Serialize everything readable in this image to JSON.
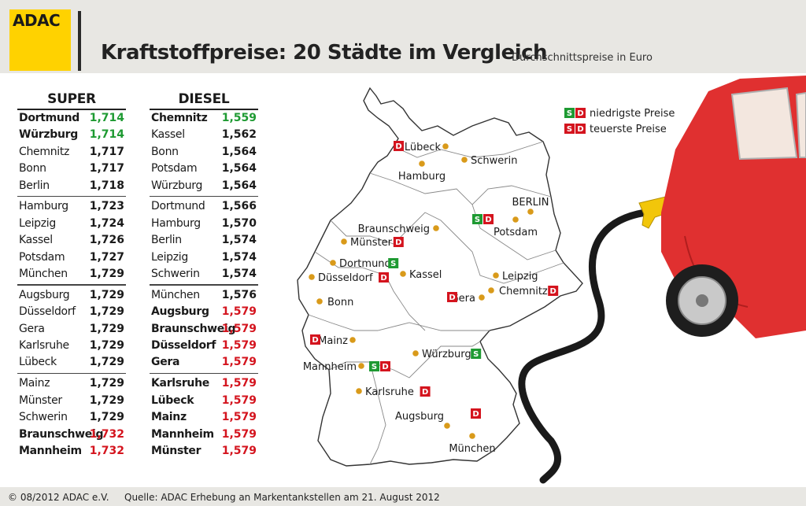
{
  "header": {
    "logo": "ADAC",
    "title": "Kraftstoffpreise: 20 Städte im Vergleich",
    "subtitle": "Durchschnittspreise in Euro"
  },
  "footer": {
    "copyright": "© 08/2012 ADAC e.V.",
    "source": "Quelle: ADAC Erhebung an Markentankstellen am 21. August 2012"
  },
  "colors": {
    "low": "#1e9a32",
    "high": "#d4141e",
    "accent": "#ffd200",
    "car": "#e03030",
    "dot": "#d99a1a"
  },
  "legend": {
    "low_label": "niedrigste Preise",
    "high_label": "teuerste Preise",
    "super_letter": "S",
    "diesel_letter": "D"
  },
  "chart_data": {
    "type": "table",
    "columns": [
      {
        "name": "SUPER",
        "rows": [
          {
            "city": "Dortmund",
            "price": "1,714",
            "flag": "low"
          },
          {
            "city": "Würzburg",
            "price": "1,714",
            "flag": "low"
          },
          {
            "city": "Chemnitz",
            "price": "1,717",
            "flag": ""
          },
          {
            "city": "Bonn",
            "price": "1,717",
            "flag": ""
          },
          {
            "city": "Berlin",
            "price": "1,718",
            "flag": ""
          },
          {
            "city": "Hamburg",
            "price": "1,723",
            "flag": ""
          },
          {
            "city": "Leipzig",
            "price": "1,724",
            "flag": ""
          },
          {
            "city": "Kassel",
            "price": "1,726",
            "flag": ""
          },
          {
            "city": "Potsdam",
            "price": "1,727",
            "flag": ""
          },
          {
            "city": "München",
            "price": "1,729",
            "flag": ""
          },
          {
            "city": "Augsburg",
            "price": "1,729",
            "flag": ""
          },
          {
            "city": "Düsseldorf",
            "price": "1,729",
            "flag": ""
          },
          {
            "city": "Gera",
            "price": "1,729",
            "flag": ""
          },
          {
            "city": "Karlsruhe",
            "price": "1,729",
            "flag": ""
          },
          {
            "city": "Lübeck",
            "price": "1,729",
            "flag": ""
          },
          {
            "city": "Mainz",
            "price": "1,729",
            "flag": ""
          },
          {
            "city": "Münster",
            "price": "1,729",
            "flag": ""
          },
          {
            "city": "Schwerin",
            "price": "1,729",
            "flag": ""
          },
          {
            "city": "Braunschweig",
            "price": "1,732",
            "flag": "high"
          },
          {
            "city": "Mannheim",
            "price": "1,732",
            "flag": "high"
          }
        ]
      },
      {
        "name": "DIESEL",
        "rows": [
          {
            "city": "Chemnitz",
            "price": "1,559",
            "flag": "low"
          },
          {
            "city": "Kassel",
            "price": "1,562",
            "flag": ""
          },
          {
            "city": "Bonn",
            "price": "1,564",
            "flag": ""
          },
          {
            "city": "Potsdam",
            "price": "1,564",
            "flag": ""
          },
          {
            "city": "Würzburg",
            "price": "1,564",
            "flag": ""
          },
          {
            "city": "Dortmund",
            "price": "1,566",
            "flag": ""
          },
          {
            "city": "Hamburg",
            "price": "1,570",
            "flag": ""
          },
          {
            "city": "Berlin",
            "price": "1,574",
            "flag": ""
          },
          {
            "city": "Leipzig",
            "price": "1,574",
            "flag": ""
          },
          {
            "city": "Schwerin",
            "price": "1,574",
            "flag": ""
          },
          {
            "city": "München",
            "price": "1,576",
            "flag": ""
          },
          {
            "city": "Augsburg",
            "price": "1,579",
            "flag": "high"
          },
          {
            "city": "Braunschweig",
            "price": "1,579",
            "flag": "high"
          },
          {
            "city": "Düsseldorf",
            "price": "1,579",
            "flag": "high"
          },
          {
            "city": "Gera",
            "price": "1,579",
            "flag": "high"
          },
          {
            "city": "Karlsruhe",
            "price": "1,579",
            "flag": "high"
          },
          {
            "city": "Lübeck",
            "price": "1,579",
            "flag": "high"
          },
          {
            "city": "Mainz",
            "price": "1,579",
            "flag": "high"
          },
          {
            "city": "Mannheim",
            "price": "1,579",
            "flag": "high"
          },
          {
            "city": "Münster",
            "price": "1,579",
            "flag": "high"
          }
        ]
      }
    ],
    "map_cities": [
      {
        "name": "Lübeck",
        "badges": [
          "D"
        ]
      },
      {
        "name": "Schwerin",
        "badges": []
      },
      {
        "name": "Hamburg",
        "badges": []
      },
      {
        "name": "BERLIN",
        "badges": []
      },
      {
        "name": "Potsdam",
        "badges": []
      },
      {
        "name": "Braunschweig",
        "badges": [
          "S",
          "D"
        ]
      },
      {
        "name": "Münster",
        "badges": [
          "D"
        ]
      },
      {
        "name": "Dortmund",
        "badges": [
          "S"
        ]
      },
      {
        "name": "Düsseldorf",
        "badges": [
          "D"
        ]
      },
      {
        "name": "Kassel",
        "badges": []
      },
      {
        "name": "Leipzig",
        "badges": []
      },
      {
        "name": "Chemnitz",
        "badges": [
          "D"
        ]
      },
      {
        "name": "Bonn",
        "badges": []
      },
      {
        "name": "Gera",
        "badges": [
          "D"
        ]
      },
      {
        "name": "Mainz",
        "badges": [
          "D"
        ]
      },
      {
        "name": "Würzburg",
        "badges": [
          "S"
        ]
      },
      {
        "name": "Mannheim",
        "badges": [
          "S",
          "D"
        ]
      },
      {
        "name": "Karlsruhe",
        "badges": [
          "D"
        ]
      },
      {
        "name": "Augsburg",
        "badges": [
          "D"
        ]
      },
      {
        "name": "München",
        "badges": []
      }
    ]
  }
}
